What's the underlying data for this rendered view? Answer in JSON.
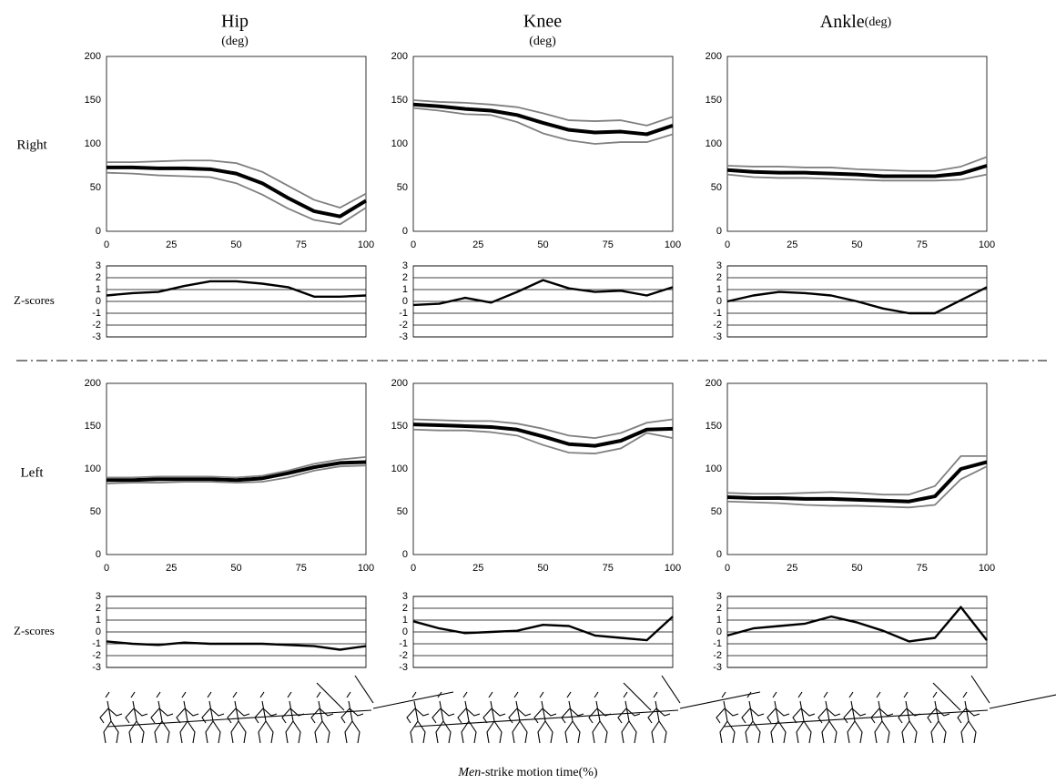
{
  "column_titles": [
    "Hip",
    "Knee",
    "Ankle"
  ],
  "units": [
    "(deg)",
    "(deg)",
    "(deg)"
  ],
  "row_labels": [
    "Right",
    "Left"
  ],
  "z_label": "Z-scores",
  "footer": {
    "emphasis": "Men",
    "text": "-strike motion time(%)"
  },
  "chart_data": [
    {
      "type": "line",
      "x": [
        0,
        10,
        20,
        30,
        40,
        50,
        60,
        70,
        80,
        90,
        100
      ],
      "xlim": [
        0,
        100
      ],
      "xticks": [
        0,
        25,
        50,
        75,
        100
      ],
      "ylim": [
        0,
        200
      ],
      "yticks": [
        0,
        50,
        100,
        150,
        200
      ],
      "series": [
        {
          "color": "#000000",
          "values": [
            73,
            73,
            72,
            72,
            71,
            66,
            55,
            38,
            23,
            17,
            35
          ]
        },
        {
          "color": "#808080",
          "values": [
            79,
            79,
            80,
            81,
            81,
            78,
            68,
            52,
            36,
            27,
            43
          ]
        },
        {
          "color": "#808080",
          "values": [
            67,
            66,
            64,
            63,
            62,
            55,
            42,
            26,
            13,
            8,
            27
          ]
        }
      ]
    },
    {
      "type": "line",
      "x": [
        0,
        10,
        20,
        30,
        40,
        50,
        60,
        70,
        80,
        90,
        100
      ],
      "xlim": [
        0,
        100
      ],
      "ylim": [
        -3,
        3
      ],
      "yticks": [
        -3,
        -2,
        -1,
        0,
        1,
        2,
        3
      ],
      "grid": true,
      "series": [
        {
          "color": "#000000",
          "values": [
            0.5,
            0.7,
            0.8,
            1.3,
            1.7,
            1.7,
            1.5,
            1.2,
            0.4,
            0.4,
            0.5
          ]
        }
      ]
    },
    {
      "type": "line",
      "x": [
        0,
        10,
        20,
        30,
        40,
        50,
        60,
        70,
        80,
        90,
        100
      ],
      "xlim": [
        0,
        100
      ],
      "xticks": [
        0,
        25,
        50,
        75,
        100
      ],
      "ylim": [
        0,
        200
      ],
      "yticks": [
        0,
        50,
        100,
        150,
        200
      ],
      "series": [
        {
          "color": "#000000",
          "values": [
            145,
            143,
            140,
            138,
            133,
            124,
            116,
            113,
            114,
            111,
            121
          ]
        },
        {
          "color": "#808080",
          "values": [
            150,
            148,
            147,
            145,
            142,
            135,
            127,
            126,
            127,
            121,
            131
          ]
        },
        {
          "color": "#808080",
          "values": [
            141,
            138,
            134,
            133,
            125,
            112,
            104,
            100,
            102,
            102,
            111
          ]
        }
      ]
    },
    {
      "type": "line",
      "x": [
        0,
        10,
        20,
        30,
        40,
        50,
        60,
        70,
        80,
        90,
        100
      ],
      "xlim": [
        0,
        100
      ],
      "ylim": [
        -3,
        3
      ],
      "yticks": [
        -3,
        -2,
        -1,
        0,
        1,
        2,
        3
      ],
      "grid": true,
      "series": [
        {
          "color": "#000000",
          "values": [
            -0.3,
            -0.2,
            0.3,
            -0.1,
            0.8,
            1.8,
            1.1,
            0.8,
            0.9,
            0.5,
            1.2
          ]
        }
      ]
    },
    {
      "type": "line",
      "x": [
        0,
        10,
        20,
        30,
        40,
        50,
        60,
        70,
        80,
        90,
        100
      ],
      "xlim": [
        0,
        100
      ],
      "xticks": [
        0,
        25,
        50,
        75,
        100
      ],
      "ylim": [
        0,
        200
      ],
      "yticks": [
        0,
        50,
        100,
        150,
        200
      ],
      "series": [
        {
          "color": "#000000",
          "values": [
            70,
            68,
            67,
            67,
            66,
            65,
            63,
            63,
            63,
            66,
            75
          ]
        },
        {
          "color": "#808080",
          "values": [
            75,
            74,
            74,
            73,
            73,
            71,
            70,
            69,
            69,
            74,
            85
          ]
        },
        {
          "color": "#808080",
          "values": [
            65,
            62,
            61,
            61,
            60,
            59,
            58,
            58,
            58,
            59,
            65
          ]
        }
      ]
    },
    {
      "type": "line",
      "x": [
        0,
        10,
        20,
        30,
        40,
        50,
        60,
        70,
        80,
        90,
        100
      ],
      "xlim": [
        0,
        100
      ],
      "ylim": [
        -3,
        3
      ],
      "yticks": [
        -3,
        -2,
        -1,
        0,
        1,
        2,
        3
      ],
      "grid": true,
      "series": [
        {
          "color": "#000000",
          "values": [
            0,
            0.5,
            0.8,
            0.7,
            0.5,
            0,
            -0.6,
            -1.0,
            -1.0,
            0.1,
            1.2
          ]
        }
      ]
    },
    {
      "type": "line",
      "x": [
        0,
        10,
        20,
        30,
        40,
        50,
        60,
        70,
        80,
        90,
        100
      ],
      "xlim": [
        0,
        100
      ],
      "xticks": [
        0,
        25,
        50,
        75,
        100
      ],
      "ylim": [
        0,
        200
      ],
      "yticks": [
        0,
        50,
        100,
        150,
        200
      ],
      "series": [
        {
          "color": "#000000",
          "values": [
            87,
            87,
            88,
            88,
            88,
            87,
            89,
            95,
            102,
            107,
            108
          ]
        },
        {
          "color": "#808080",
          "values": [
            90,
            90,
            91,
            91,
            91,
            90,
            92,
            98,
            106,
            111,
            114
          ]
        },
        {
          "color": "#808080",
          "values": [
            83,
            84,
            84,
            85,
            85,
            84,
            85,
            90,
            98,
            103,
            104
          ]
        }
      ]
    },
    {
      "type": "line",
      "x": [
        0,
        10,
        20,
        30,
        40,
        50,
        60,
        70,
        80,
        90,
        100
      ],
      "xlim": [
        0,
        100
      ],
      "ylim": [
        -3,
        3
      ],
      "yticks": [
        -3,
        -2,
        -1,
        0,
        1,
        2,
        3
      ],
      "grid": true,
      "series": [
        {
          "color": "#000000",
          "values": [
            -0.8,
            -1.0,
            -1.1,
            -0.9,
            -1.0,
            -1.0,
            -1.0,
            -1.1,
            -1.2,
            -1.5,
            -1.2
          ]
        }
      ]
    },
    {
      "type": "line",
      "x": [
        0,
        10,
        20,
        30,
        40,
        50,
        60,
        70,
        80,
        90,
        100
      ],
      "xlim": [
        0,
        100
      ],
      "xticks": [
        0,
        25,
        50,
        75,
        100
      ],
      "ylim": [
        0,
        200
      ],
      "yticks": [
        0,
        50,
        100,
        150,
        200
      ],
      "series": [
        {
          "color": "#000000",
          "values": [
            152,
            151,
            150,
            149,
            146,
            138,
            129,
            127,
            133,
            146,
            147
          ]
        },
        {
          "color": "#808080",
          "values": [
            158,
            157,
            156,
            156,
            153,
            147,
            139,
            136,
            142,
            154,
            158
          ]
        },
        {
          "color": "#808080",
          "values": [
            146,
            145,
            145,
            143,
            139,
            128,
            119,
            118,
            124,
            142,
            136
          ]
        }
      ]
    },
    {
      "type": "line",
      "x": [
        0,
        10,
        20,
        30,
        40,
        50,
        60,
        70,
        80,
        90,
        100
      ],
      "xlim": [
        0,
        100
      ],
      "ylim": [
        -3,
        3
      ],
      "yticks": [
        -3,
        -2,
        -1,
        0,
        1,
        2,
        3
      ],
      "grid": true,
      "series": [
        {
          "color": "#000000",
          "values": [
            0.9,
            0.3,
            -0.1,
            0,
            0.1,
            0.6,
            0.5,
            -0.3,
            -0.5,
            -0.7,
            1.3
          ]
        }
      ]
    },
    {
      "type": "line",
      "x": [
        0,
        10,
        20,
        30,
        40,
        50,
        60,
        70,
        80,
        90,
        100
      ],
      "xlim": [
        0,
        100
      ],
      "xticks": [
        0,
        25,
        50,
        75,
        100
      ],
      "ylim": [
        0,
        200
      ],
      "yticks": [
        0,
        50,
        100,
        150,
        200
      ],
      "series": [
        {
          "color": "#000000",
          "values": [
            67,
            66,
            66,
            65,
            65,
            64,
            63,
            62,
            68,
            100,
            108
          ]
        },
        {
          "color": "#808080",
          "values": [
            72,
            71,
            71,
            72,
            73,
            72,
            70,
            70,
            80,
            115,
            115
          ]
        },
        {
          "color": "#808080",
          "values": [
            62,
            61,
            60,
            58,
            57,
            57,
            56,
            55,
            58,
            88,
            103
          ]
        }
      ]
    },
    {
      "type": "line",
      "x": [
        0,
        10,
        20,
        30,
        40,
        50,
        60,
        70,
        80,
        90,
        100
      ],
      "xlim": [
        0,
        100
      ],
      "ylim": [
        -3,
        3
      ],
      "yticks": [
        -3,
        -2,
        -1,
        0,
        1,
        2,
        3
      ],
      "grid": true,
      "series": [
        {
          "color": "#000000",
          "values": [
            -0.3,
            0.3,
            0.5,
            0.7,
            1.3,
            0.8,
            0.1,
            -0.8,
            -0.5,
            2.1,
            -0.7
          ]
        }
      ]
    }
  ]
}
